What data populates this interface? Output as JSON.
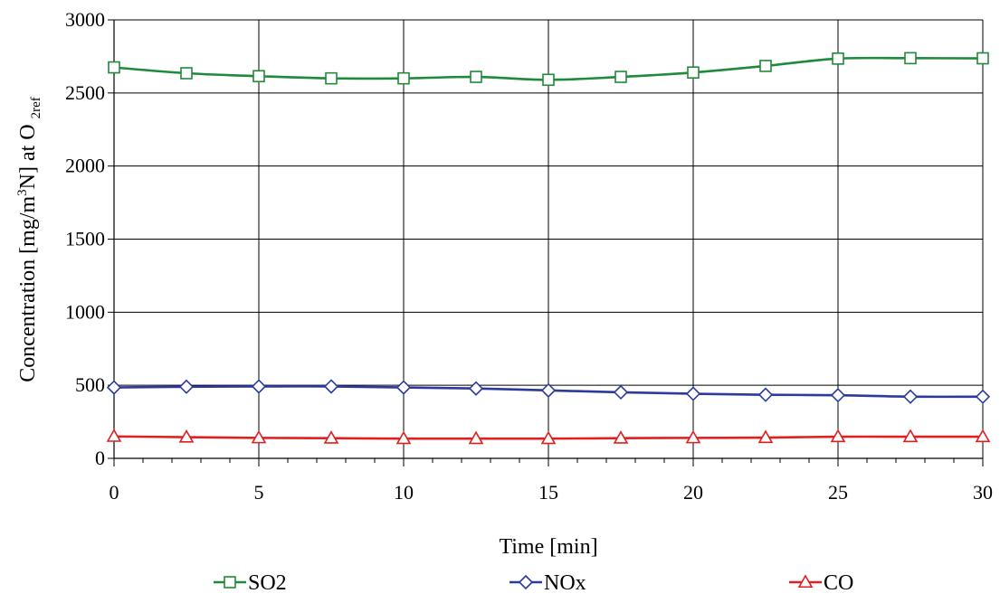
{
  "chart_data": {
    "type": "line",
    "xlabel": "Time [min]",
    "ylabel": {
      "prefix": "Concentration [mg/m",
      "sup": "3",
      "mid": "N] at O",
      "sub": "2ref"
    },
    "xlim": [
      0,
      30
    ],
    "ylim": [
      0,
      3000
    ],
    "xticks": [
      0,
      5,
      10,
      15,
      20,
      25,
      30
    ],
    "yticks": [
      0,
      500,
      1000,
      1500,
      2000,
      2500,
      3000
    ],
    "x_minor_step": 1,
    "grid": true,
    "legend_position": "bottom",
    "x": [
      0,
      2.5,
      5,
      7.5,
      10,
      12.5,
      15,
      17.5,
      20,
      22.5,
      25,
      27.5,
      30
    ],
    "series": [
      {
        "name": "SO2",
        "color": "#1e8a3a",
        "marker": "square",
        "values": [
          2675,
          2635,
          2615,
          2600,
          2600,
          2610,
          2590,
          2610,
          2640,
          2685,
          2735,
          2738,
          2737
        ]
      },
      {
        "name": "NOx",
        "color": "#2b3a9c",
        "marker": "diamond",
        "values": [
          485,
          490,
          492,
          492,
          485,
          478,
          465,
          452,
          442,
          435,
          432,
          422,
          422
        ]
      },
      {
        "name": "CO",
        "color": "#e02020",
        "marker": "triangle",
        "values": [
          150,
          145,
          140,
          138,
          135,
          135,
          135,
          138,
          140,
          142,
          148,
          148,
          148
        ]
      }
    ]
  }
}
